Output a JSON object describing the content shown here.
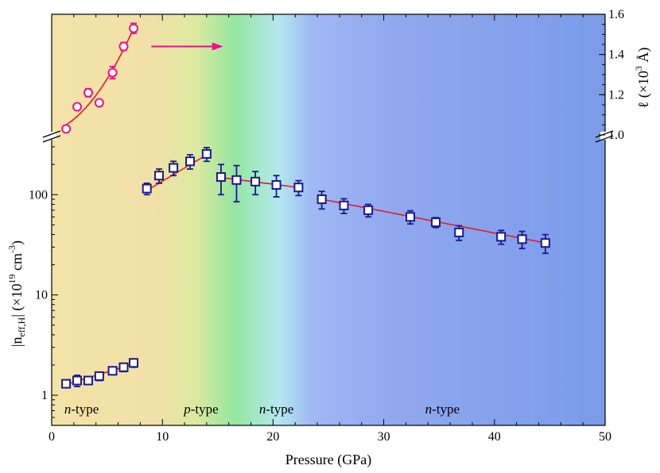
{
  "chart_data": {
    "type": "scatter",
    "xlabel": "Pressure (GPa)",
    "xlim": [
      0,
      50
    ],
    "x_ticks": [
      "0",
      "10",
      "20",
      "30",
      "40",
      "50"
    ],
    "ylabel": {
      "prefix": "|n",
      "subscript": "eff,H",
      "middle": "| (×10",
      "superscript": "19",
      "unit": " cm",
      "unit_sup": "-3",
      "close": ")"
    },
    "y_scale": "log",
    "ylim": [
      0.5,
      300
    ],
    "y_ticks": [
      "1",
      "10",
      "100"
    ],
    "y2label": {
      "prefix": "ℓ (×10",
      "superscript": "3",
      "unit": " Å)"
    },
    "y2lim": [
      1.0,
      1.6
    ],
    "y2_ticks": [
      "1.0",
      "1.2",
      "1.4",
      "1.6"
    ],
    "region_labels": [
      {
        "pre": "n",
        "post": "-type",
        "x": 2.7
      },
      {
        "pre": "p",
        "post": "-type",
        "x": 13.5
      },
      {
        "pre": "n",
        "post": "-type",
        "x": 20.3
      },
      {
        "pre": "n",
        "post": "-type",
        "x": 35.3
      }
    ],
    "series": [
      {
        "marker": "square",
        "axis": "left",
        "color": "#1a1a8c",
        "x": [
          1.3,
          2.3,
          3.3,
          4.3,
          5.5,
          6.5,
          7.4,
          8.6,
          9.7,
          11.0,
          12.5,
          14.0,
          15.3,
          16.7,
          18.4,
          20.3,
          22.3,
          24.4,
          26.4,
          28.6,
          32.4,
          34.7,
          36.8,
          40.6,
          42.5,
          44.6
        ],
        "y": [
          1.3,
          1.4,
          1.4,
          1.55,
          1.75,
          1.9,
          2.1,
          115,
          155,
          185,
          215,
          255,
          150,
          140,
          135,
          125,
          118,
          90,
          78,
          70,
          60,
          53,
          42,
          38,
          36,
          33
        ],
        "err": [
          0.1,
          0.18,
          0.12,
          0.15,
          0.15,
          0.18,
          0.2,
          15,
          25,
          30,
          35,
          40,
          50,
          55,
          35,
          30,
          20,
          18,
          13,
          10,
          9,
          6,
          7,
          6,
          7,
          7
        ]
      },
      {
        "marker": "circle",
        "axis": "right",
        "color": "#ee1188",
        "x": [
          1.3,
          2.3,
          3.3,
          4.3,
          5.5,
          6.5,
          7.4
        ],
        "y": [
          1.03,
          1.14,
          1.21,
          1.16,
          1.31,
          1.44,
          1.53
        ],
        "err": [
          0.015,
          0.015,
          0.02,
          0.015,
          0.03,
          0.02,
          0.025
        ]
      }
    ],
    "fits": [
      {
        "axis": "left",
        "x": [
          1.3,
          7.4
        ],
        "y": [
          1.28,
          2.05
        ]
      },
      {
        "axis": "left",
        "x": [
          8.6,
          14.0
        ],
        "y": [
          110,
          250
        ]
      },
      {
        "axis": "left",
        "x": [
          15.3,
          22.3
        ],
        "y": [
          148,
          118
        ]
      },
      {
        "axis": "left",
        "x": [
          24.4,
          44.6
        ],
        "y": [
          90,
          33
        ]
      },
      {
        "axis": "right",
        "x": [
          1.3,
          7.4
        ],
        "y": [
          1.05,
          1.53
        ]
      }
    ],
    "annotation_arrow": {
      "x": [
        9.0,
        15.5
      ],
      "y2": 1.44,
      "color": "#ee1188"
    },
    "background_gradient": [
      "#f3e3a8",
      "#f1e1a8",
      "#dde9a0",
      "#94e6a0",
      "#b4e8ee",
      "#9fb8f4",
      "#90a8ee",
      "#7b9bea"
    ]
  }
}
